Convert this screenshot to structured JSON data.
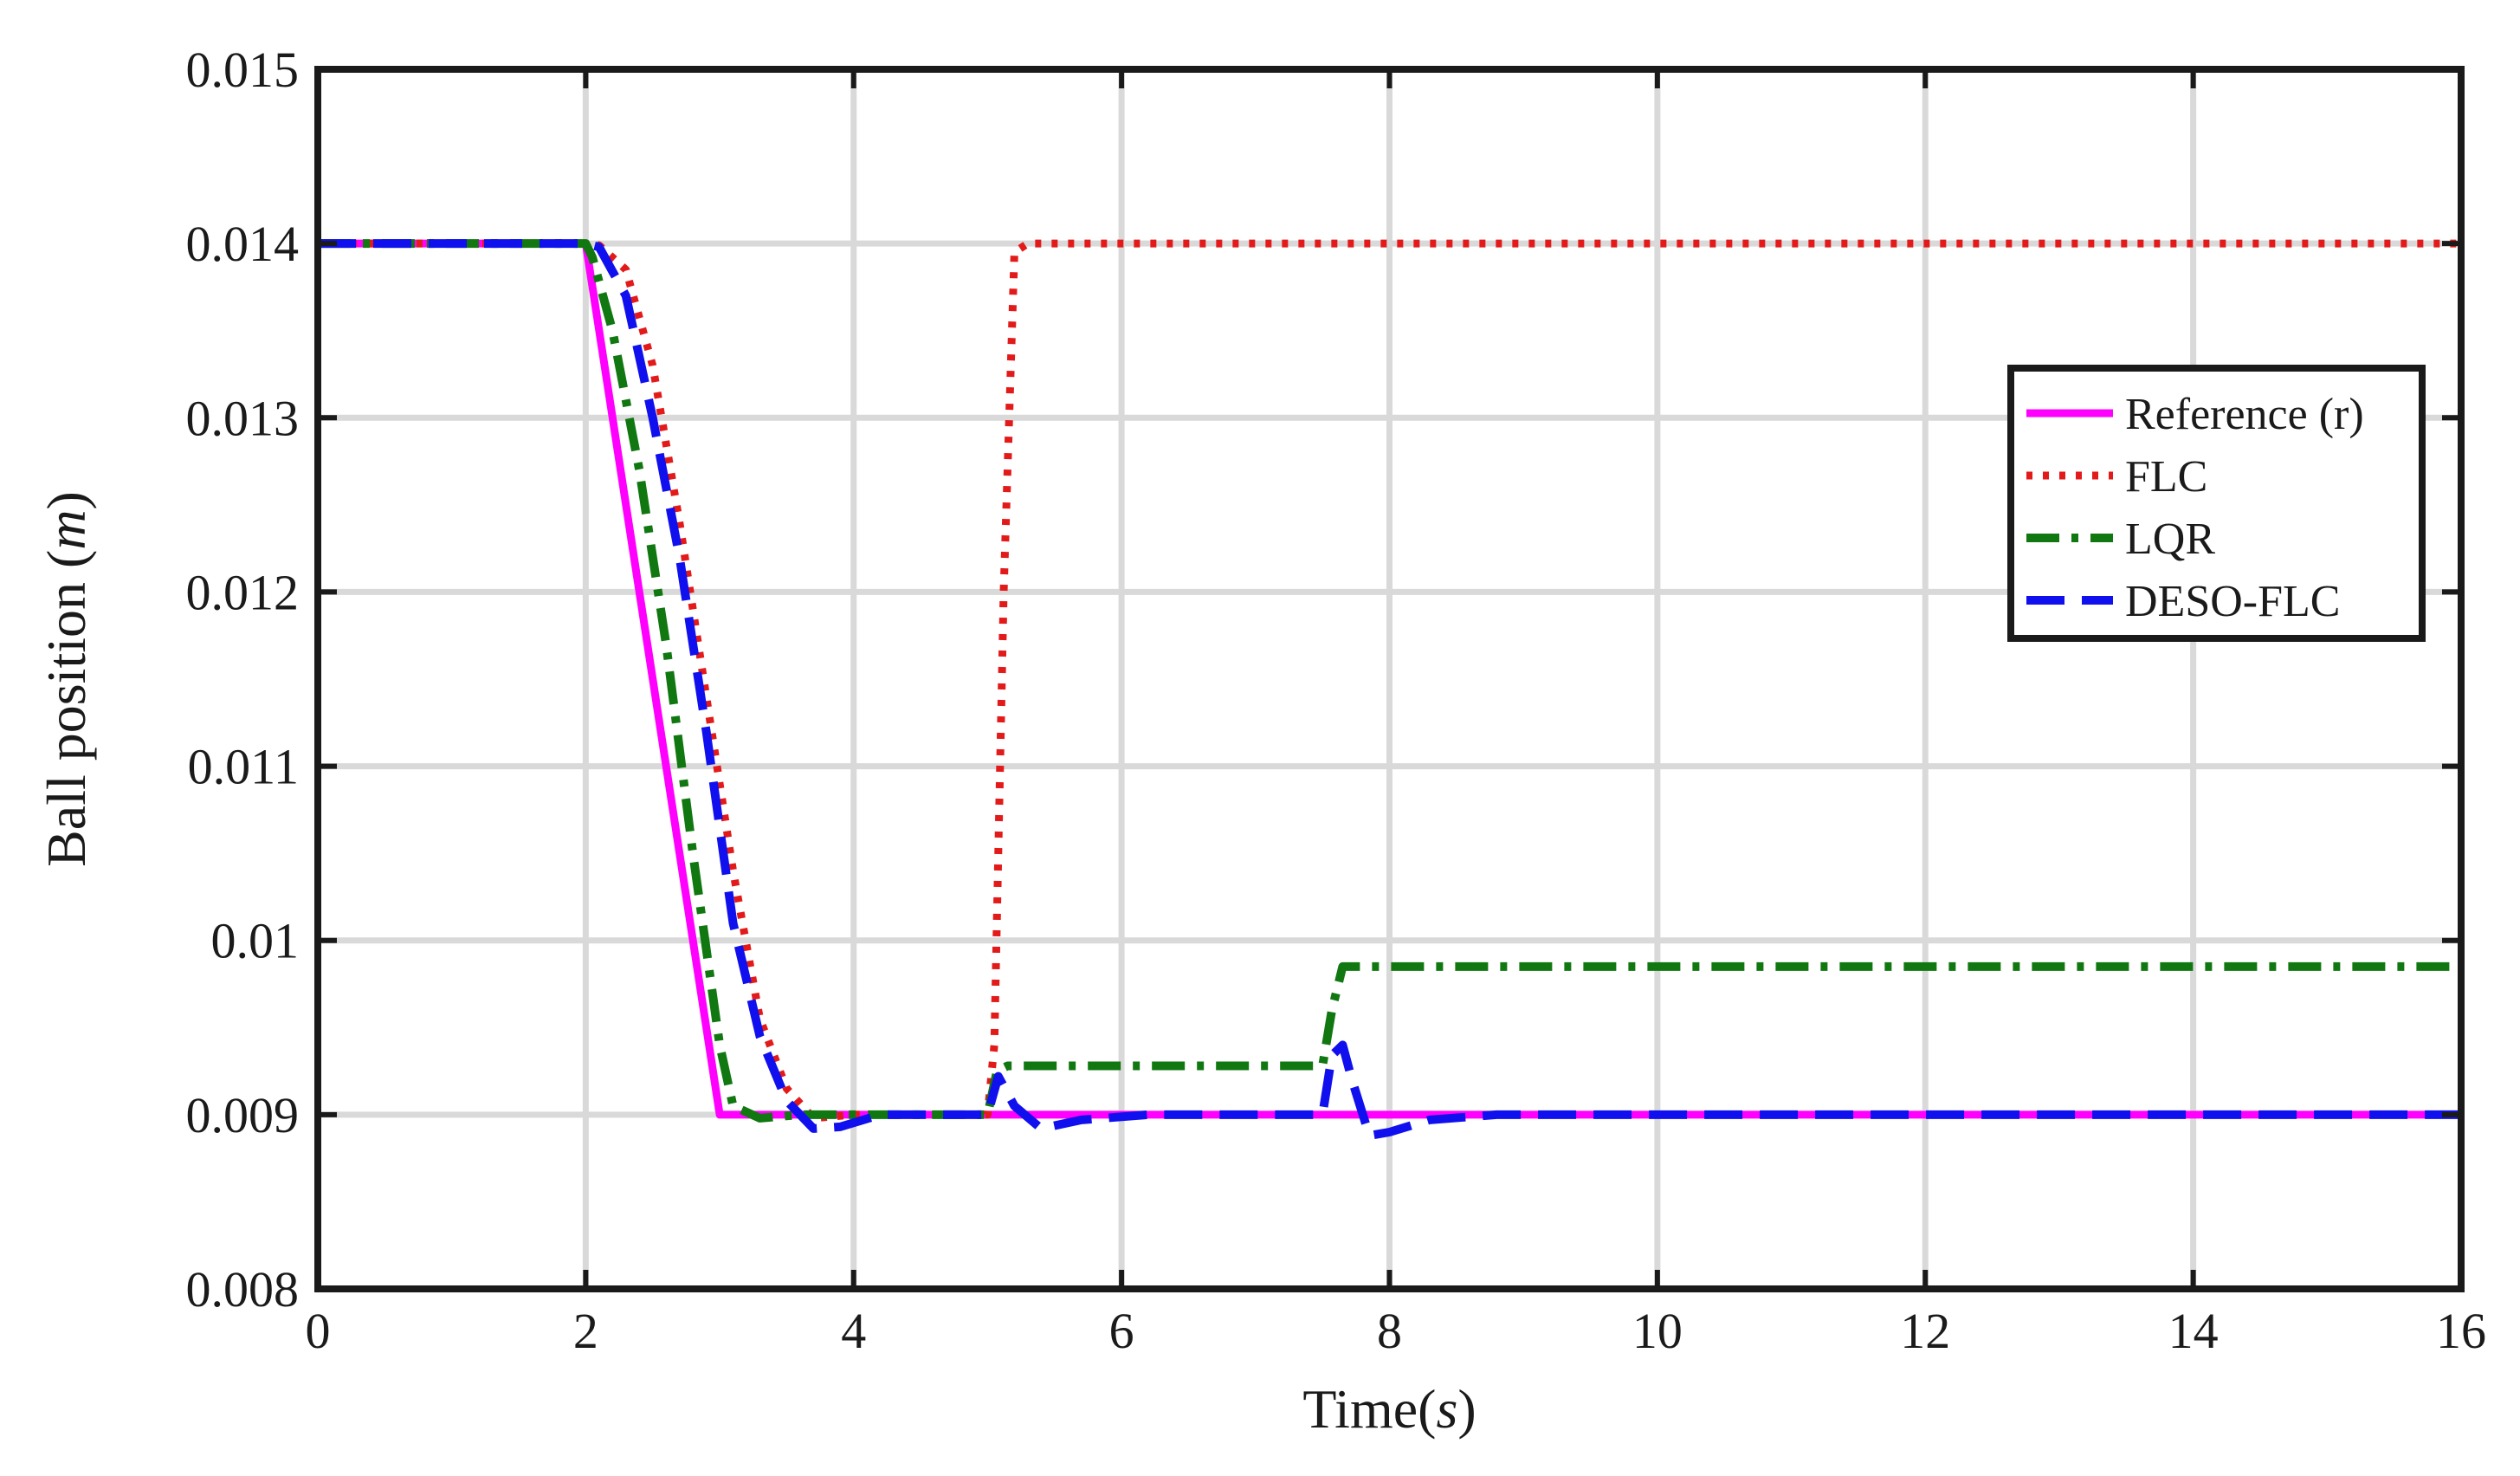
{
  "colors": {
    "reference": "#ff00ff",
    "flc": "#e31a1a",
    "lqr": "#117711",
    "deso_flc": "#1010ee",
    "grid": "#d9d9d9",
    "axes": "#1a1a1a"
  },
  "chart_data": {
    "type": "line",
    "title": "",
    "xlabel": "Time(",
    "xlabel_var": "s",
    "xlabel_close": ")",
    "ylabel": "Ball position (",
    "ylabel_var": "m",
    "ylabel_close": ")",
    "xlim": [
      0,
      16
    ],
    "ylim": [
      0.008,
      0.015
    ],
    "xticks": [
      "0",
      "2",
      "4",
      "6",
      "8",
      "10",
      "12",
      "14",
      "16"
    ],
    "yticks": [
      "0.008",
      "0.009",
      "0.01",
      "0.011",
      "0.012",
      "0.013",
      "0.014",
      "0.015"
    ],
    "grid": true,
    "legend_position": "right",
    "series": [
      {
        "name": "Reference (r)",
        "style": "solid",
        "points": [
          [
            0,
            0.014
          ],
          [
            2,
            0.014
          ],
          [
            3,
            0.009
          ],
          [
            16,
            0.009
          ]
        ]
      },
      {
        "name": "FLC",
        "style": "dotted",
        "points": [
          [
            0,
            0.014
          ],
          [
            2,
            0.014
          ],
          [
            2.1,
            0.01399
          ],
          [
            2.3,
            0.01385
          ],
          [
            2.5,
            0.0133
          ],
          [
            2.7,
            0.0124
          ],
          [
            2.9,
            0.0114
          ],
          [
            3.1,
            0.0104
          ],
          [
            3.3,
            0.00955
          ],
          [
            3.5,
            0.00915
          ],
          [
            3.7,
            0.00898
          ],
          [
            4.0,
            0.009
          ],
          [
            5.0,
            0.009
          ],
          [
            5.05,
            0.0094
          ],
          [
            5.12,
            0.012
          ],
          [
            5.2,
            0.01395
          ],
          [
            5.3,
            0.014
          ],
          [
            16,
            0.014
          ]
        ]
      },
      {
        "name": "LQR",
        "style": "dashdot",
        "points": [
          [
            0,
            0.014
          ],
          [
            2,
            0.014
          ],
          [
            2.05,
            0.01392
          ],
          [
            2.2,
            0.0135
          ],
          [
            2.4,
            0.0127
          ],
          [
            2.6,
            0.0117
          ],
          [
            2.8,
            0.0105
          ],
          [
            3.0,
            0.0094
          ],
          [
            3.1,
            0.00905
          ],
          [
            3.3,
            0.00898
          ],
          [
            3.6,
            0.009
          ],
          [
            5.0,
            0.009
          ],
          [
            5.07,
            0.00925
          ],
          [
            5.15,
            0.00928
          ],
          [
            7.5,
            0.00928
          ],
          [
            7.57,
            0.0096
          ],
          [
            7.65,
            0.00985
          ],
          [
            16,
            0.00985
          ]
        ]
      },
      {
        "name": "DESO-FLC",
        "style": "dashed",
        "points": [
          [
            0,
            0.014
          ],
          [
            2,
            0.014
          ],
          [
            2.1,
            0.01398
          ],
          [
            2.3,
            0.0137
          ],
          [
            2.5,
            0.013
          ],
          [
            2.7,
            0.0122
          ],
          [
            2.9,
            0.0112
          ],
          [
            3.1,
            0.0101
          ],
          [
            3.3,
            0.00945
          ],
          [
            3.5,
            0.00908
          ],
          [
            3.7,
            0.00892
          ],
          [
            3.9,
            0.00893
          ],
          [
            4.2,
            0.009
          ],
          [
            5.0,
            0.009
          ],
          [
            5.08,
            0.00922
          ],
          [
            5.2,
            0.00905
          ],
          [
            5.4,
            0.00892
          ],
          [
            5.7,
            0.00897
          ],
          [
            6.2,
            0.009
          ],
          [
            7.5,
            0.009
          ],
          [
            7.57,
            0.00934
          ],
          [
            7.65,
            0.0094
          ],
          [
            7.72,
            0.0092
          ],
          [
            7.85,
            0.00888
          ],
          [
            8.0,
            0.0089
          ],
          [
            8.3,
            0.00897
          ],
          [
            8.8,
            0.009
          ],
          [
            16,
            0.009
          ]
        ]
      }
    ]
  }
}
